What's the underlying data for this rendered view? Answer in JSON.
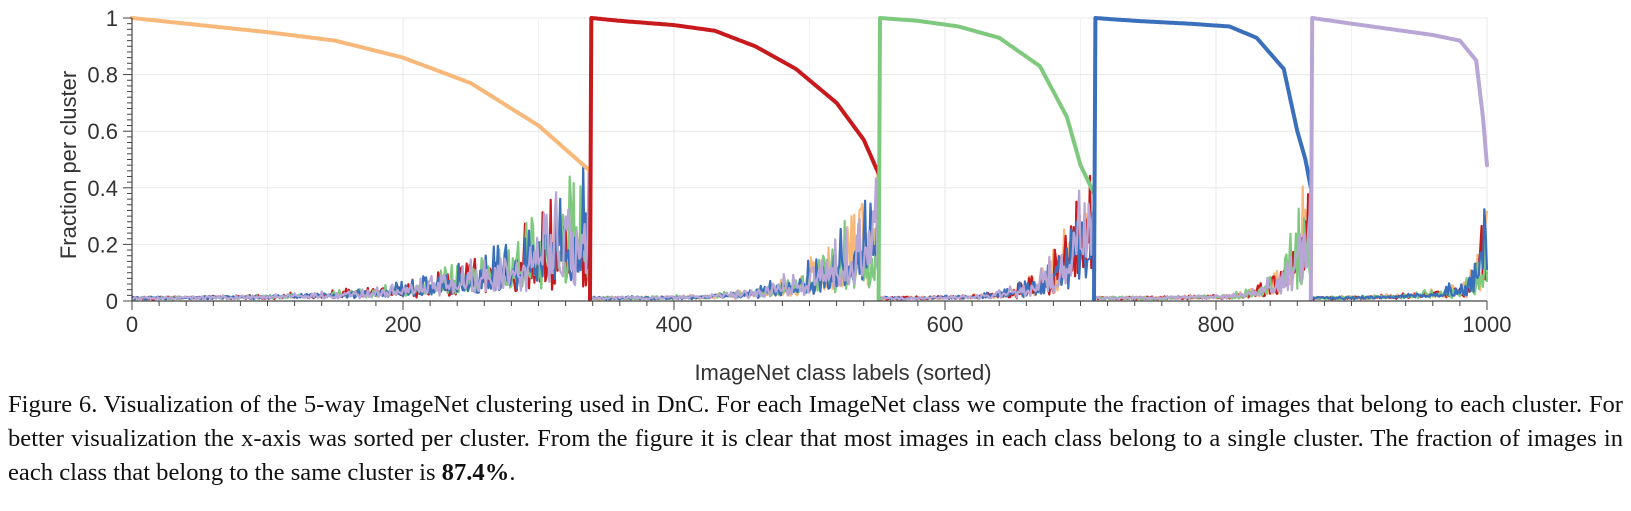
{
  "chart_data": {
    "type": "line",
    "title": "",
    "xlabel": "ImageNet class labels (sorted)",
    "ylabel": "Fraction per cluster",
    "xlim": [
      0,
      1000
    ],
    "ylim": [
      0,
      1
    ],
    "xticks": [
      0,
      200,
      400,
      600,
      800,
      1000
    ],
    "xtick_labels": [
      "0",
      "200",
      "400",
      "600",
      "800",
      "1000"
    ],
    "yticks": [
      0,
      0.2,
      0.4,
      0.6,
      0.8,
      1
    ],
    "ytick_labels": [
      "0",
      "0.2",
      "0.4",
      "0.6",
      "0.8",
      "1"
    ],
    "grid": true,
    "legend": "none",
    "clusters": [
      {
        "name": "cluster-1",
        "color": "#f7b87a",
        "range": [
          0,
          338
        ],
        "top_points": [
          [
            0,
            1.0
          ],
          [
            50,
            0.975
          ],
          [
            100,
            0.95
          ],
          [
            150,
            0.92
          ],
          [
            200,
            0.86
          ],
          [
            250,
            0.77
          ],
          [
            300,
            0.62
          ],
          [
            338,
            0.46
          ]
        ]
      },
      {
        "name": "cluster-2",
        "color": "#c8191d",
        "range": [
          339,
          551
        ],
        "top_points": [
          [
            339,
            1.0
          ],
          [
            360,
            0.99
          ],
          [
            400,
            0.975
          ],
          [
            430,
            0.955
          ],
          [
            460,
            0.9
          ],
          [
            490,
            0.82
          ],
          [
            520,
            0.7
          ],
          [
            540,
            0.57
          ],
          [
            551,
            0.45
          ]
        ]
      },
      {
        "name": "cluster-3",
        "color": "#7fc97f",
        "range": [
          552,
          710
        ],
        "top_points": [
          [
            552,
            1.0
          ],
          [
            580,
            0.99
          ],
          [
            610,
            0.97
          ],
          [
            640,
            0.93
          ],
          [
            670,
            0.83
          ],
          [
            690,
            0.65
          ],
          [
            700,
            0.48
          ],
          [
            710,
            0.38
          ]
        ]
      },
      {
        "name": "cluster-4",
        "color": "#3a6fbb",
        "range": [
          711,
          870
        ],
        "top_points": [
          [
            711,
            1.0
          ],
          [
            740,
            0.99
          ],
          [
            780,
            0.98
          ],
          [
            810,
            0.97
          ],
          [
            830,
            0.93
          ],
          [
            850,
            0.82
          ],
          [
            860,
            0.6
          ],
          [
            866,
            0.5
          ],
          [
            870,
            0.4
          ]
        ]
      },
      {
        "name": "cluster-5",
        "color": "#b8a6d6",
        "range": [
          871,
          1000
        ],
        "top_points": [
          [
            871,
            1.0
          ],
          [
            900,
            0.98
          ],
          [
            930,
            0.96
          ],
          [
            960,
            0.94
          ],
          [
            980,
            0.92
          ],
          [
            992,
            0.85
          ],
          [
            997,
            0.65
          ],
          [
            1000,
            0.48
          ]
        ]
      }
    ]
  },
  "caption": {
    "prefix": "Figure 6. Visualization of the 5-way ImageNet clustering used in DnC. For each ImageNet class we compute the fraction of images that belong to each cluster. For better visualization the x-axis was sorted per cluster. From the figure it is clear that most images in each class belong to a single cluster. The fraction of images in each class that belong to the same cluster is ",
    "bold_value": "87.4%",
    "suffix": "."
  }
}
